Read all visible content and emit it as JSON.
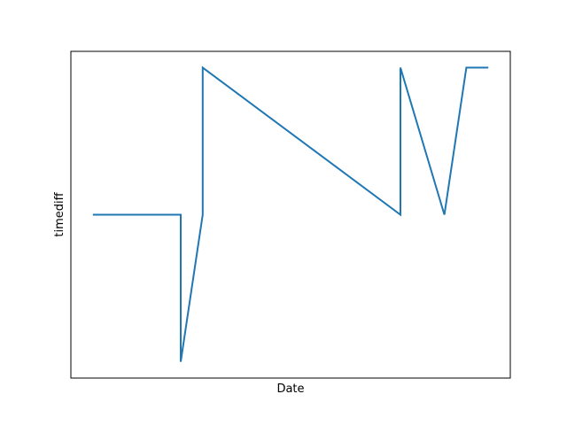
{
  "chart_data": {
    "type": "line",
    "xlabel": "Date",
    "ylabel": "timediff",
    "xticks_shown": false,
    "yticks_shown": false,
    "grid": false,
    "line_color": "#1f77b4",
    "x_range": [
      0,
      18
    ],
    "y_range": [
      -1,
      1
    ],
    "series": [
      {
        "x": [
          0,
          4,
          4,
          5,
          5,
          14,
          14,
          16,
          17,
          18
        ],
        "y": [
          0,
          0,
          -1,
          0,
          1,
          0,
          1,
          0,
          1,
          1
        ]
      }
    ]
  }
}
